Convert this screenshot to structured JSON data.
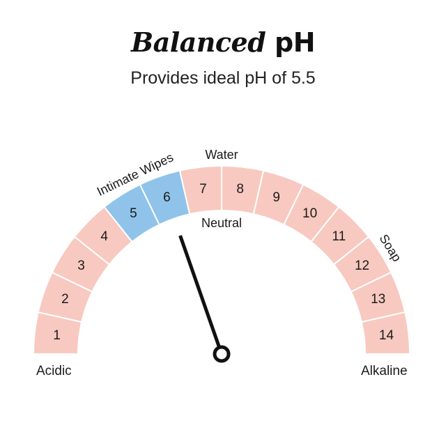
{
  "title": {
    "main": "Balanced",
    "ph": "pH"
  },
  "subtitle": "Provides ideal pH of 5.5",
  "colors": {
    "normal": "#f8c9c0",
    "highlight": "#8fc3ea",
    "needle": "#111111"
  },
  "chart_data": {
    "type": "gauge",
    "min": 0,
    "max": 14,
    "segments": [
      {
        "label": "1",
        "highlight": false
      },
      {
        "label": "2",
        "highlight": false
      },
      {
        "label": "3",
        "highlight": false
      },
      {
        "label": "4",
        "highlight": false
      },
      {
        "label": "5",
        "highlight": true
      },
      {
        "label": "6",
        "highlight": true
      },
      {
        "label": "7",
        "highlight": false
      },
      {
        "label": "8",
        "highlight": false
      },
      {
        "label": "9",
        "highlight": false
      },
      {
        "label": "10",
        "highlight": false
      },
      {
        "label": "11",
        "highlight": false
      },
      {
        "label": "12",
        "highlight": false
      },
      {
        "label": "13",
        "highlight": false
      },
      {
        "label": "14",
        "highlight": false
      }
    ],
    "needle_value": 5.5,
    "annotations": [
      {
        "text": "Intimate Wipes",
        "value": 5,
        "position": "outside"
      },
      {
        "text": "Water",
        "value": 7,
        "position": "outside"
      },
      {
        "text": "Soap",
        "value": 11.5,
        "position": "outside"
      },
      {
        "text": "Neutral",
        "value": 7,
        "position": "inside"
      }
    ],
    "left_label": "Acidic",
    "right_label": "Alkaline"
  }
}
